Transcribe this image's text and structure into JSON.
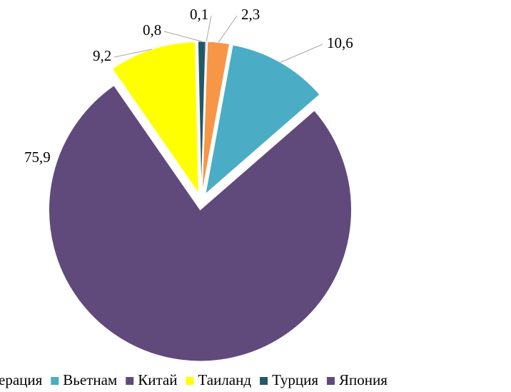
{
  "chart_data": {
    "type": "pie",
    "categories": [
      "ерация",
      "Вьетнам",
      "Китай",
      "Таиланд",
      "Турция",
      "Япония"
    ],
    "values": [
      2.3,
      10.6,
      75.9,
      9.2,
      0.8,
      0.1
    ],
    "value_labels": [
      "2,3",
      "10,6",
      "75,9",
      "9,2",
      "0,8",
      "0,1"
    ],
    "colors": [
      "#f79646",
      "#4bacc6",
      "#604a7b",
      "#ffff00",
      "#215968",
      "#5f497a"
    ],
    "legend": "bottom"
  }
}
